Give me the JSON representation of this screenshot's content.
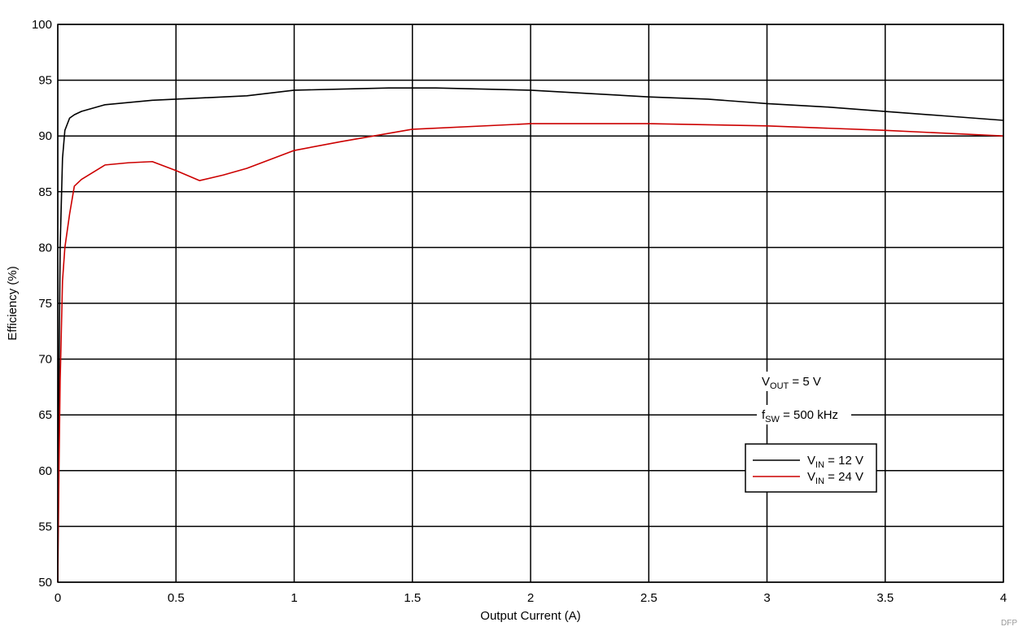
{
  "chart_data": {
    "type": "line",
    "xlabel": "Output Current (A)",
    "ylabel": "Efficiency (%)",
    "xlim": [
      0,
      4
    ],
    "ylim": [
      50,
      100
    ],
    "x_ticks": [
      0,
      0.5,
      1,
      1.5,
      2,
      2.5,
      3,
      3.5,
      4
    ],
    "x_tick_labels": [
      "0",
      "0.5",
      "1",
      "1.5",
      "2",
      "2.5",
      "3",
      "3.5",
      "4"
    ],
    "y_ticks": [
      50,
      55,
      60,
      65,
      70,
      75,
      80,
      85,
      90,
      95,
      100
    ],
    "y_tick_labels": [
      "50",
      "55",
      "60",
      "65",
      "70",
      "75",
      "80",
      "85",
      "90",
      "95",
      "100"
    ],
    "grid": true,
    "legend_position": "bottom-right",
    "annotations": {
      "vout_main": "V",
      "vout_sub": "OUT",
      "vout_rest": " = 5 V",
      "fsw_main": "f",
      "fsw_sub": "SW",
      "fsw_rest": " = 500 kHz"
    },
    "watermark": "DFP",
    "series": [
      {
        "name": "VIN = 12 V",
        "legend_main": "V",
        "legend_sub": "IN",
        "legend_rest": " = 12 V",
        "color": "#000000",
        "x": [
          0.0,
          0.002,
          0.005,
          0.01,
          0.02,
          0.03,
          0.05,
          0.07,
          0.1,
          0.2,
          0.4,
          0.6,
          0.8,
          1.0,
          1.2,
          1.4,
          1.6,
          1.8,
          2.0,
          2.25,
          2.5,
          2.75,
          3.0,
          3.25,
          3.5,
          3.75,
          4.0
        ],
        "y": [
          50,
          62,
          68,
          80,
          88,
          90.5,
          91.6,
          91.9,
          92.2,
          92.8,
          93.2,
          93.4,
          93.6,
          94.1,
          94.2,
          94.3,
          94.3,
          94.2,
          94.1,
          93.8,
          93.5,
          93.3,
          92.9,
          92.6,
          92.2,
          91.8,
          91.4
        ]
      },
      {
        "name": "VIN = 24 V",
        "legend_main": "V",
        "legend_sub": "IN",
        "legend_rest": " = 24 V",
        "color": "#cc0000",
        "x": [
          0.0,
          0.005,
          0.01,
          0.02,
          0.03,
          0.05,
          0.07,
          0.1,
          0.2,
          0.3,
          0.4,
          0.5,
          0.6,
          0.7,
          0.8,
          1.0,
          1.2,
          1.5,
          2.0,
          2.5,
          3.0,
          3.5,
          4.0
        ],
        "y": [
          50,
          60,
          68,
          77,
          80,
          83,
          85.5,
          86.1,
          87.4,
          87.6,
          87.7,
          86.9,
          86.0,
          86.5,
          87.1,
          88.7,
          89.5,
          90.6,
          91.1,
          91.1,
          90.9,
          90.5,
          90.0
        ]
      }
    ]
  }
}
